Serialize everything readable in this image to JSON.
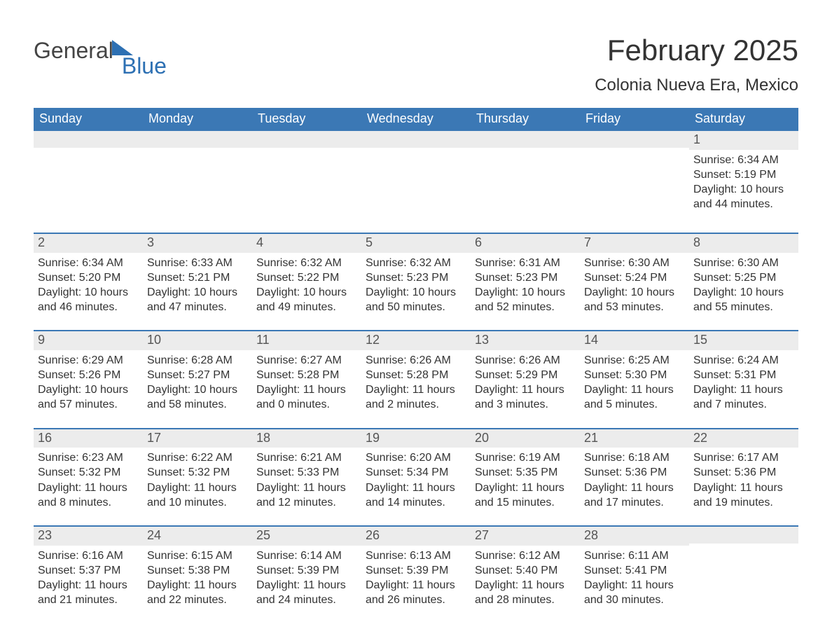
{
  "brand": {
    "word1": "General",
    "word2": "Blue",
    "accent_color": "#2d70b3"
  },
  "title": "February 2025",
  "location": "Colonia Nueva Era, Mexico",
  "header_bg": "#3b78b5",
  "header_fg": "#ffffff",
  "daynum_bg": "#ececec",
  "divider_color": "#3b78b5",
  "text_color": "#333333",
  "day_names": [
    "Sunday",
    "Monday",
    "Tuesday",
    "Wednesday",
    "Thursday",
    "Friday",
    "Saturday"
  ],
  "weeks": [
    [
      {
        "blank": true
      },
      {
        "blank": true
      },
      {
        "blank": true
      },
      {
        "blank": true
      },
      {
        "blank": true
      },
      {
        "blank": true
      },
      {
        "day": "1",
        "sunrise": "Sunrise: 6:34 AM",
        "sunset": "Sunset: 5:19 PM",
        "daylight": "Daylight: 10 hours and 44 minutes."
      }
    ],
    [
      {
        "day": "2",
        "sunrise": "Sunrise: 6:34 AM",
        "sunset": "Sunset: 5:20 PM",
        "daylight": "Daylight: 10 hours and 46 minutes."
      },
      {
        "day": "3",
        "sunrise": "Sunrise: 6:33 AM",
        "sunset": "Sunset: 5:21 PM",
        "daylight": "Daylight: 10 hours and 47 minutes."
      },
      {
        "day": "4",
        "sunrise": "Sunrise: 6:32 AM",
        "sunset": "Sunset: 5:22 PM",
        "daylight": "Daylight: 10 hours and 49 minutes."
      },
      {
        "day": "5",
        "sunrise": "Sunrise: 6:32 AM",
        "sunset": "Sunset: 5:23 PM",
        "daylight": "Daylight: 10 hours and 50 minutes."
      },
      {
        "day": "6",
        "sunrise": "Sunrise: 6:31 AM",
        "sunset": "Sunset: 5:23 PM",
        "daylight": "Daylight: 10 hours and 52 minutes."
      },
      {
        "day": "7",
        "sunrise": "Sunrise: 6:30 AM",
        "sunset": "Sunset: 5:24 PM",
        "daylight": "Daylight: 10 hours and 53 minutes."
      },
      {
        "day": "8",
        "sunrise": "Sunrise: 6:30 AM",
        "sunset": "Sunset: 5:25 PM",
        "daylight": "Daylight: 10 hours and 55 minutes."
      }
    ],
    [
      {
        "day": "9",
        "sunrise": "Sunrise: 6:29 AM",
        "sunset": "Sunset: 5:26 PM",
        "daylight": "Daylight: 10 hours and 57 minutes."
      },
      {
        "day": "10",
        "sunrise": "Sunrise: 6:28 AM",
        "sunset": "Sunset: 5:27 PM",
        "daylight": "Daylight: 10 hours and 58 minutes."
      },
      {
        "day": "11",
        "sunrise": "Sunrise: 6:27 AM",
        "sunset": "Sunset: 5:28 PM",
        "daylight": "Daylight: 11 hours and 0 minutes."
      },
      {
        "day": "12",
        "sunrise": "Sunrise: 6:26 AM",
        "sunset": "Sunset: 5:28 PM",
        "daylight": "Daylight: 11 hours and 2 minutes."
      },
      {
        "day": "13",
        "sunrise": "Sunrise: 6:26 AM",
        "sunset": "Sunset: 5:29 PM",
        "daylight": "Daylight: 11 hours and 3 minutes."
      },
      {
        "day": "14",
        "sunrise": "Sunrise: 6:25 AM",
        "sunset": "Sunset: 5:30 PM",
        "daylight": "Daylight: 11 hours and 5 minutes."
      },
      {
        "day": "15",
        "sunrise": "Sunrise: 6:24 AM",
        "sunset": "Sunset: 5:31 PM",
        "daylight": "Daylight: 11 hours and 7 minutes."
      }
    ],
    [
      {
        "day": "16",
        "sunrise": "Sunrise: 6:23 AM",
        "sunset": "Sunset: 5:32 PM",
        "daylight": "Daylight: 11 hours and 8 minutes."
      },
      {
        "day": "17",
        "sunrise": "Sunrise: 6:22 AM",
        "sunset": "Sunset: 5:32 PM",
        "daylight": "Daylight: 11 hours and 10 minutes."
      },
      {
        "day": "18",
        "sunrise": "Sunrise: 6:21 AM",
        "sunset": "Sunset: 5:33 PM",
        "daylight": "Daylight: 11 hours and 12 minutes."
      },
      {
        "day": "19",
        "sunrise": "Sunrise: 6:20 AM",
        "sunset": "Sunset: 5:34 PM",
        "daylight": "Daylight: 11 hours and 14 minutes."
      },
      {
        "day": "20",
        "sunrise": "Sunrise: 6:19 AM",
        "sunset": "Sunset: 5:35 PM",
        "daylight": "Daylight: 11 hours and 15 minutes."
      },
      {
        "day": "21",
        "sunrise": "Sunrise: 6:18 AM",
        "sunset": "Sunset: 5:36 PM",
        "daylight": "Daylight: 11 hours and 17 minutes."
      },
      {
        "day": "22",
        "sunrise": "Sunrise: 6:17 AM",
        "sunset": "Sunset: 5:36 PM",
        "daylight": "Daylight: 11 hours and 19 minutes."
      }
    ],
    [
      {
        "day": "23",
        "sunrise": "Sunrise: 6:16 AM",
        "sunset": "Sunset: 5:37 PM",
        "daylight": "Daylight: 11 hours and 21 minutes."
      },
      {
        "day": "24",
        "sunrise": "Sunrise: 6:15 AM",
        "sunset": "Sunset: 5:38 PM",
        "daylight": "Daylight: 11 hours and 22 minutes."
      },
      {
        "day": "25",
        "sunrise": "Sunrise: 6:14 AM",
        "sunset": "Sunset: 5:39 PM",
        "daylight": "Daylight: 11 hours and 24 minutes."
      },
      {
        "day": "26",
        "sunrise": "Sunrise: 6:13 AM",
        "sunset": "Sunset: 5:39 PM",
        "daylight": "Daylight: 11 hours and 26 minutes."
      },
      {
        "day": "27",
        "sunrise": "Sunrise: 6:12 AM",
        "sunset": "Sunset: 5:40 PM",
        "daylight": "Daylight: 11 hours and 28 minutes."
      },
      {
        "day": "28",
        "sunrise": "Sunrise: 6:11 AM",
        "sunset": "Sunset: 5:41 PM",
        "daylight": "Daylight: 11 hours and 30 minutes."
      },
      {
        "blank": true
      }
    ]
  ]
}
